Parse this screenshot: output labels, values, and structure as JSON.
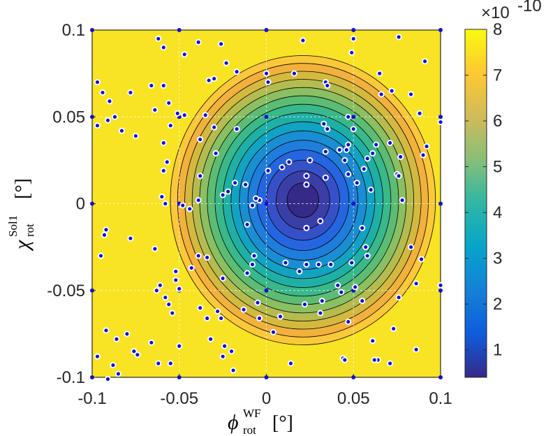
{
  "chart_data": {
    "type": "contour",
    "title": "",
    "x_axis": {
      "label_main": "ϕ",
      "label_sup": "WF",
      "label_sub": "rot",
      "label_unit": "[°]",
      "range": [
        -0.1,
        0.1
      ],
      "ticks": [
        -0.1,
        -0.05,
        0,
        0.05,
        0.1
      ],
      "tick_labels": [
        "-0.1",
        "-0.05",
        "0",
        "0.05",
        "0.1"
      ]
    },
    "y_axis": {
      "label_main": "χ",
      "label_sup": "Sol1",
      "label_sub": "rot",
      "label_unit": "[°]",
      "range": [
        -0.1,
        0.1
      ],
      "ticks": [
        -0.1,
        -0.05,
        0,
        0.05,
        0.1
      ],
      "tick_labels": [
        "-0.1",
        "-0.05",
        "0",
        "0.05",
        "0.1"
      ]
    },
    "grid": true,
    "colorbar": {
      "colormap": "parula",
      "range": [
        4e-11,
        8e-10
      ],
      "ticks": [
        1,
        2,
        3,
        4,
        5,
        6,
        7,
        8
      ],
      "tick_labels": [
        "1",
        "2",
        "3",
        "4",
        "5",
        "6",
        "7",
        "8"
      ],
      "multiplier_base": "×10",
      "multiplier_exponent": "-10"
    },
    "field_model": {
      "center_x": 0.021,
      "center_y": 0.002,
      "min_value": 0.45,
      "scale_x": 0.0148,
      "scale_y": 0.0162,
      "exponent": 1.62,
      "unit": "1e-10"
    },
    "contour_levels": [
      0.5,
      1,
      1.5,
      2,
      2.5,
      3,
      3.5,
      4,
      4.5,
      5,
      5.5,
      6,
      6.5,
      7,
      7.5,
      8
    ],
    "level_colors": [
      "#352a87",
      "#3b3ea6",
      "#3651c8",
      "#2566e0",
      "#1f7ddb",
      "#1a8ed2",
      "#12a2c2",
      "#1fb0a5",
      "#39b88a",
      "#5dbc74",
      "#8abf62",
      "#b4bc4f",
      "#d4b93f",
      "#f2b13c",
      "#fbc83a",
      "#f8e424"
    ],
    "series": [
      {
        "name": "grid nodes",
        "marker": "blue-dot",
        "points": [
          [
            -0.1,
            0.1
          ],
          [
            -0.05,
            0.1
          ],
          [
            0,
            0.1
          ],
          [
            0.05,
            0.1
          ],
          [
            0.1,
            0.1
          ],
          [
            -0.1,
            0.05
          ],
          [
            -0.05,
            0.05
          ],
          [
            0,
            0.05
          ],
          [
            0.05,
            0.05
          ],
          [
            0.1,
            0.05
          ],
          [
            -0.1,
            0
          ],
          [
            -0.05,
            0
          ],
          [
            0,
            0
          ],
          [
            0.05,
            0
          ],
          [
            0.1,
            0
          ],
          [
            -0.1,
            -0.05
          ],
          [
            -0.05,
            -0.05
          ],
          [
            0,
            -0.05
          ],
          [
            0.05,
            -0.05
          ],
          [
            0.1,
            -0.05
          ],
          [
            -0.1,
            -0.1
          ],
          [
            -0.05,
            -0.1
          ],
          [
            0,
            -0.1
          ],
          [
            0.05,
            -0.1
          ],
          [
            0.1,
            -0.1
          ]
        ]
      },
      {
        "name": "sample points",
        "marker": "white-ring-blue-dot",
        "points": [
          [
            -0.062,
            0.095
          ],
          [
            -0.039,
            0.093
          ],
          [
            -0.059,
            0.09
          ],
          [
            -0.047,
            0.086
          ],
          [
            -0.026,
            0.092
          ],
          [
            -0.023,
            0.081
          ],
          [
            -0.017,
            0.076
          ],
          [
            -0.033,
            0.071
          ],
          [
            -0.03,
            0.072
          ],
          [
            0,
            0.075
          ],
          [
            0.021,
            0.094
          ],
          [
            0.049,
            0.087
          ],
          [
            0.05,
            0.095
          ],
          [
            0.076,
            0.096
          ],
          [
            0.091,
            0.082
          ],
          [
            -0.066,
            0.068
          ],
          [
            -0.059,
            0.068
          ],
          [
            -0.097,
            0.07
          ],
          [
            -0.078,
            0.064
          ],
          [
            -0.09,
            0.059
          ],
          [
            -0.094,
            0.064
          ],
          [
            -0.091,
            0.048
          ],
          [
            -0.097,
            0.045
          ],
          [
            -0.083,
            0.042
          ],
          [
            -0.087,
            0.05
          ],
          [
            -0.075,
            0.039
          ],
          [
            -0.064,
            0.054
          ],
          [
            -0.056,
            0.058
          ],
          [
            -0.051,
            0.052
          ],
          [
            -0.047,
            0.051
          ],
          [
            -0.055,
            0.045
          ],
          [
            -0.035,
            0.051
          ],
          [
            -0.03,
            0.044
          ],
          [
            -0.017,
            0.043
          ],
          [
            0.001,
            0.07
          ],
          [
            0.016,
            0.075
          ],
          [
            0.034,
            0.07
          ],
          [
            0.035,
            0.068
          ],
          [
            0.065,
            0.075
          ],
          [
            0.072,
            0.065
          ],
          [
            0.066,
            0.063
          ],
          [
            0.083,
            0.063
          ],
          [
            0.088,
            0.052
          ],
          [
            0.1,
            0.047
          ],
          [
            0.09,
            0.028
          ],
          [
            0.092,
            0.033
          ],
          [
            0.071,
            0.035
          ],
          [
            0.077,
            0.027
          ],
          [
            0.075,
            0.017
          ],
          [
            0.076,
            0.016
          ],
          [
            -0.059,
            0.035
          ],
          [
            -0.038,
            0.037
          ],
          [
            -0.057,
            0.024
          ],
          [
            -0.029,
            0.029
          ],
          [
            -0.059,
            0.019
          ],
          [
            -0.06,
            0.004
          ],
          [
            -0.058,
            0
          ],
          [
            -0.039,
            0.002
          ],
          [
            -0.048,
            -0.001
          ],
          [
            -0.044,
            -0.003
          ],
          [
            -0.038,
            0.016
          ],
          [
            -0.018,
            0.012
          ],
          [
            -0.022,
            0.007
          ],
          [
            -0.012,
            0.011
          ],
          [
            -0.011,
            -0.012
          ],
          [
            -0.025,
            0.005
          ],
          [
            0.001,
            0.019
          ],
          [
            0.009,
            0.021
          ],
          [
            0.013,
            0.024
          ],
          [
            0.025,
            0.025
          ],
          [
            0.034,
            0.03
          ],
          [
            0.042,
            0.031
          ],
          [
            0.046,
            0.031
          ],
          [
            0.045,
            0.025
          ],
          [
            0.047,
            0.017
          ],
          [
            0.052,
            0.012
          ],
          [
            0.056,
            0.02
          ],
          [
            0.058,
            0.026
          ],
          [
            0.061,
            0.029
          ],
          [
            0.063,
            0.034
          ],
          [
            0.047,
            0.034
          ],
          [
            0.05,
            0.043
          ],
          [
            0.047,
            0.05
          ],
          [
            0.033,
            0.046
          ],
          [
            0.035,
            0.043
          ],
          [
            0.023,
            0.016
          ],
          [
            0.023,
            0.011
          ],
          [
            0.034,
            0.015
          ],
          [
            0.06,
            0.008
          ],
          [
            0.078,
            0.002
          ],
          [
            -0.004,
            0.002
          ],
          [
            -0.008,
            -0.001
          ],
          [
            -0.006,
            0.003
          ],
          [
            0.023,
            -0.014
          ],
          [
            0.031,
            -0.01
          ],
          [
            0.055,
            -0.014
          ],
          [
            -0.093,
            -0.018
          ],
          [
            -0.092,
            -0.015
          ],
          [
            -0.095,
            -0.03
          ],
          [
            -0.078,
            -0.02
          ],
          [
            -0.064,
            -0.026
          ],
          [
            -0.063,
            -0.05
          ],
          [
            -0.052,
            -0.039
          ],
          [
            -0.052,
            -0.044
          ],
          [
            -0.043,
            -0.037
          ],
          [
            -0.05,
            -0.049
          ],
          [
            -0.061,
            -0.047
          ],
          [
            -0.058,
            -0.054
          ],
          [
            -0.056,
            -0.058
          ],
          [
            -0.054,
            -0.063
          ],
          [
            -0.039,
            -0.03
          ],
          [
            -0.034,
            -0.031
          ],
          [
            -0.025,
            -0.043
          ],
          [
            -0.038,
            -0.06
          ],
          [
            -0.034,
            -0.066
          ],
          [
            -0.026,
            -0.066
          ],
          [
            -0.013,
            -0.061
          ],
          [
            -0.005,
            -0.057
          ],
          [
            -0.011,
            -0.04
          ],
          [
            0.011,
            -0.034
          ],
          [
            0.023,
            -0.035
          ],
          [
            0.03,
            -0.035
          ],
          [
            0.037,
            -0.035
          ],
          [
            0.049,
            -0.034
          ],
          [
            0.058,
            -0.03
          ],
          [
            0.057,
            -0.025
          ],
          [
            0.083,
            -0.025
          ],
          [
            0.089,
            -0.032
          ],
          [
            0.086,
            -0.046
          ],
          [
            0.1,
            -0.047
          ],
          [
            -0.008,
            -0.035
          ],
          [
            -0.007,
            -0.03
          ],
          [
            0.019,
            -0.039
          ],
          [
            0.041,
            -0.047
          ],
          [
            0.043,
            -0.051
          ],
          [
            0.051,
            -0.048
          ],
          [
            0.055,
            -0.056
          ],
          [
            0.022,
            -0.058
          ],
          [
            0.031,
            -0.063
          ],
          [
            0.047,
            -0.068
          ],
          [
            0.008,
            -0.065
          ],
          [
            0.004,
            -0.074
          ],
          [
            -0.004,
            -0.066
          ],
          [
            0.032,
            -0.056
          ],
          [
            0.076,
            -0.054
          ],
          [
            -0.092,
            -0.073
          ],
          [
            -0.097,
            -0.088
          ],
          [
            -0.08,
            -0.075
          ],
          [
            -0.086,
            -0.078
          ],
          [
            -0.076,
            -0.085
          ],
          [
            -0.066,
            -0.08
          ],
          [
            -0.062,
            -0.092
          ],
          [
            -0.05,
            -0.082
          ],
          [
            -0.032,
            -0.078
          ],
          [
            -0.028,
            -0.062
          ],
          [
            -0.024,
            -0.082
          ],
          [
            -0.02,
            -0.085
          ],
          [
            -0.025,
            -0.088
          ],
          [
            -0.019,
            -0.096
          ],
          [
            -0.015,
            -0.103
          ],
          [
            0.014,
            -0.092
          ],
          [
            0.044,
            -0.089
          ],
          [
            0.045,
            -0.09
          ],
          [
            0.061,
            -0.079
          ],
          [
            0.064,
            -0.09
          ],
          [
            0.071,
            -0.092
          ],
          [
            0.073,
            -0.072
          ],
          [
            0.086,
            -0.084
          ],
          [
            -0.091,
            -0.101
          ],
          [
            -0.085,
            -0.098
          ],
          [
            -0.088,
            -0.093
          ],
          [
            -0.074,
            -0.087
          ],
          [
            -0.055,
            -0.092
          ],
          [
            0.062,
            -0.09
          ]
        ]
      }
    ]
  }
}
